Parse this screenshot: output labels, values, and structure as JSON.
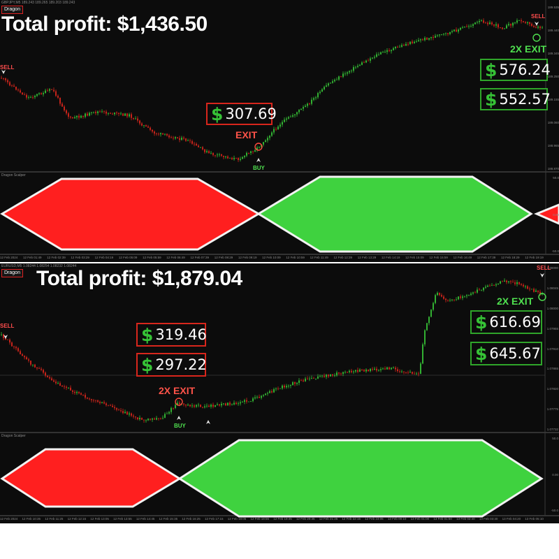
{
  "colors": {
    "background": "#0c0c0c",
    "bull_candle": "#36c236",
    "bear_candle": "#d8261c",
    "indicator_red": "#ff1f1f",
    "indicator_green": "#3fd23f",
    "box_red_border": "#d8261c",
    "box_green_border": "#2fa52a"
  },
  "top_chart": {
    "symbol_line": "GBPJPY,M5  189.243 189.265 189.203 189.243",
    "logo_text": "Dragon",
    "title": "Total profit: $1,436.50",
    "currency_symbol": "$",
    "boxes": [
      "307.69",
      "576.24",
      "552.57"
    ],
    "exit_label": "EXIT",
    "exit2_label": "2X EXIT",
    "buy_label": "BUY",
    "sell_label": "SELL",
    "indicator_name": "Dragon Scalper",
    "time_axis": [
      "12 Feb 2024",
      "12 Feb 01:49",
      "12 Feb 02:39",
      "12 Feb 03:29",
      "12 Feb 04:19",
      "12 Feb 05:09",
      "12 Feb 05:59",
      "12 Feb 06:49",
      "12 Feb 07:39",
      "12 Feb 08:29",
      "12 Feb 09:19",
      "12 Feb 10:09",
      "12 Feb 10:59",
      "12 Feb 11:49",
      "12 Feb 12:39",
      "12 Feb 13:29",
      "12 Feb 14:19",
      "12 Feb 15:09",
      "12 Feb 15:59",
      "12 Feb 16:49",
      "12 Feb 17:39",
      "12 Feb 18:29",
      "12 Feb 19:19"
    ],
    "price_axis": [
      "189.535",
      "189.440",
      "189.345",
      "189.250",
      "189.155",
      "189.060",
      "188.965",
      "188.870"
    ],
    "indicator_axis": [
      "50.0",
      "0.00",
      "-50.0"
    ]
  },
  "bottom_chart": {
    "symbol_line": "EURUSD,M5  1.08244 1.08254 1.08232 1.08244",
    "logo_text": "Dragon",
    "title": "Total profit: $1,879.04",
    "currency_symbol": "$",
    "boxes": [
      "319.46",
      "297.22",
      "616.69",
      "645.67"
    ],
    "exit2_label": "2X EXIT",
    "buy_label": "BUY",
    "sell_label": "SELL",
    "indicator_name": "Dragon Scalper",
    "time_axis": [
      "12 Feb 2024",
      "12 Feb 10:35",
      "12 Feb 11:25",
      "12 Feb 12:15",
      "12 Feb 13:05",
      "12 Feb 13:55",
      "12 Feb 14:45",
      "12 Feb 15:35",
      "12 Feb 16:25",
      "12 Feb 17:15",
      "12 Feb 18:05",
      "12 Feb 18:55",
      "12 Feb 19:45",
      "12 Feb 20:35",
      "12 Feb 21:25",
      "12 Feb 22:15",
      "12 Feb 23:05",
      "13 Feb 00:10",
      "13 Feb 01:00",
      "13 Feb 01:50",
      "13 Feb 02:40",
      "13 Feb 03:30",
      "13 Feb 04:20",
      "13 Feb 05:10"
    ],
    "price_axis": [
      "1.08090",
      "1.08045",
      "1.08000",
      "1.07955",
      "1.07910",
      "1.07865",
      "1.07820",
      "1.07775",
      "1.07732"
    ],
    "indicator_axis": [
      "50.0",
      "0.00",
      "-50.0"
    ]
  }
}
